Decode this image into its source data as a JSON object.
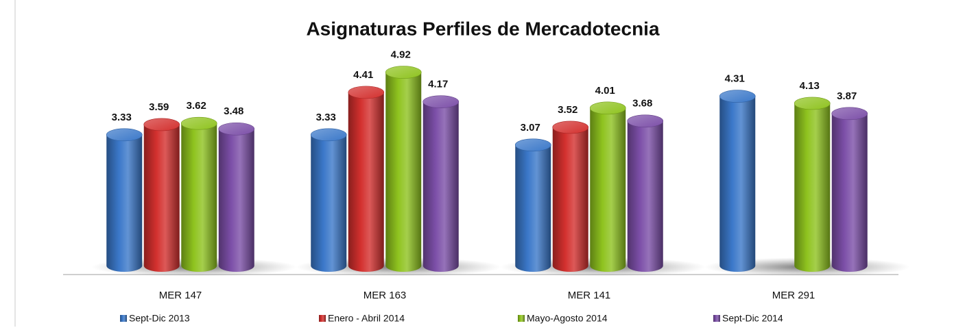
{
  "chart_data": {
    "type": "bar",
    "title": "Asignaturas Perfiles de Mercadotecnia",
    "categories": [
      "MER 147",
      "MER 163",
      "MER 141",
      "MER 291"
    ],
    "series": [
      {
        "name": "Sept-Dic 2013",
        "color": "#3b78c9",
        "values": [
          3.33,
          3.33,
          3.07,
          4.31
        ]
      },
      {
        "name": "Enero - Abril 2014",
        "color": "#d3302e",
        "values": [
          3.59,
          4.41,
          3.52,
          null
        ]
      },
      {
        "name": "Mayo-Agosto 2014",
        "color": "#8fc31f",
        "values": [
          3.62,
          4.92,
          4.01,
          4.13
        ]
      },
      {
        "name": "Sept-Dic 2014",
        "color": "#7c4fa8",
        "values": [
          3.48,
          4.17,
          3.68,
          3.87
        ]
      }
    ],
    "ylim": [
      0,
      5
    ],
    "legend": "bottom"
  }
}
